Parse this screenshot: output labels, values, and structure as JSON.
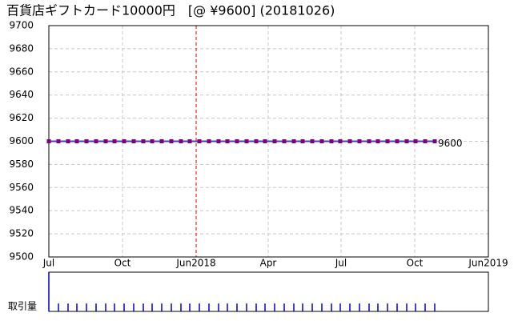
{
  "chart_data": {
    "type": "line",
    "title": "百貨店ギフトカード10000円　[@ ¥9600] (20181026)",
    "x": [
      0,
      12,
      24,
      35,
      47,
      59,
      71,
      82,
      94,
      106,
      118,
      129,
      141,
      153,
      165,
      176,
      188,
      200,
      212,
      223,
      235,
      247,
      259,
      270,
      282,
      294,
      306,
      317,
      329,
      341,
      353,
      364,
      376,
      388,
      400,
      411,
      423,
      435,
      447,
      458,
      470,
      482
    ],
    "values": [
      9600,
      9600,
      9600,
      9600,
      9600,
      9600,
      9600,
      9600,
      9600,
      9600,
      9600,
      9600,
      9600,
      9600,
      9600,
      9600,
      9600,
      9600,
      9600,
      9600,
      9600,
      9600,
      9600,
      9600,
      9600,
      9600,
      9600,
      9600,
      9600,
      9600,
      9600,
      9600,
      9600,
      9600,
      9600,
      9600,
      9600,
      9600,
      9600,
      9600,
      9600,
      9600
    ],
    "color": "#4040c0",
    "marker_color": "#800080",
    "label_color": "#d02020",
    "xlim": [
      0,
      549
    ],
    "xticks": [
      {
        "value": 0,
        "label": "Jul"
      },
      {
        "value": 92,
        "label": "Oct"
      },
      {
        "value": 184,
        "label": "Jun2018"
      },
      {
        "value": 274,
        "label": "Apr"
      },
      {
        "value": 365,
        "label": "Jul"
      },
      {
        "value": 457,
        "label": "Oct"
      },
      {
        "value": 549,
        "label": "Jun2019"
      }
    ],
    "year_line": 184,
    "ylim": [
      9500,
      9700
    ],
    "yticks": [
      9500,
      9520,
      9540,
      9560,
      9580,
      9600,
      9620,
      9640,
      9660,
      9680,
      9700
    ],
    "grid": true,
    "volume_label": "取引量",
    "volume_color": "#0000cc",
    "volume_lim": [
      0,
      10
    ],
    "volume": [
      10,
      2,
      2,
      2,
      2,
      2,
      2,
      2,
      2,
      2,
      2,
      2,
      2,
      2,
      2,
      2,
      2,
      2,
      2,
      2,
      2,
      2,
      2,
      2,
      2,
      2,
      2,
      2,
      2,
      2,
      2,
      2,
      2,
      2,
      2,
      2,
      2,
      2,
      2,
      2,
      2,
      2
    ]
  }
}
